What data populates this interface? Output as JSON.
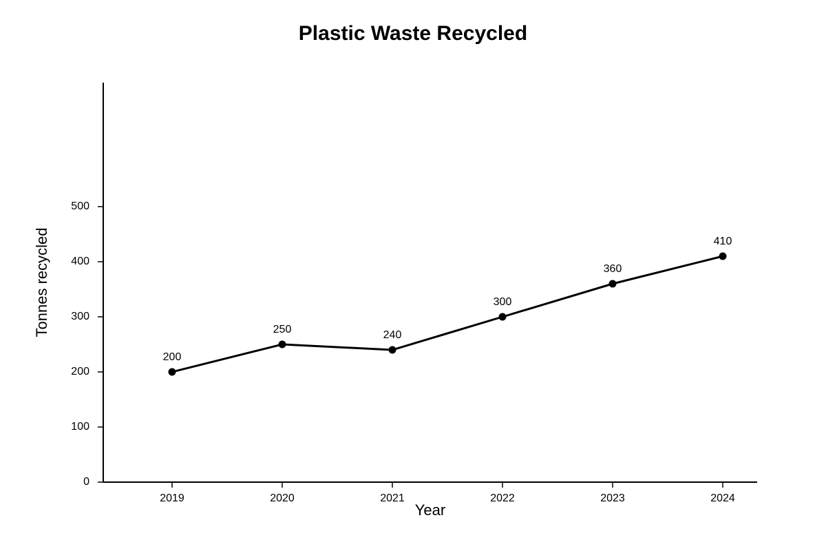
{
  "chart_data": {
    "type": "line",
    "title": "Plastic Waste Recycled",
    "x_label": "Year",
    "y_label": "Tonnes recycled",
    "x": [
      2019,
      2020,
      2021,
      2022,
      2023,
      2024
    ],
    "series": [
      {
        "color": "#000000",
        "values": [
          200,
          250,
          240,
          300,
          360,
          410
        ]
      }
    ],
    "xlim": [
      2018.375,
      2024.3125
    ],
    "xticks": [
      2019,
      2020,
      2021,
      2022,
      2023,
      2024
    ],
    "ylim": [
      0,
      725
    ],
    "yticks": [
      0,
      100,
      200,
      300,
      400,
      500
    ]
  }
}
